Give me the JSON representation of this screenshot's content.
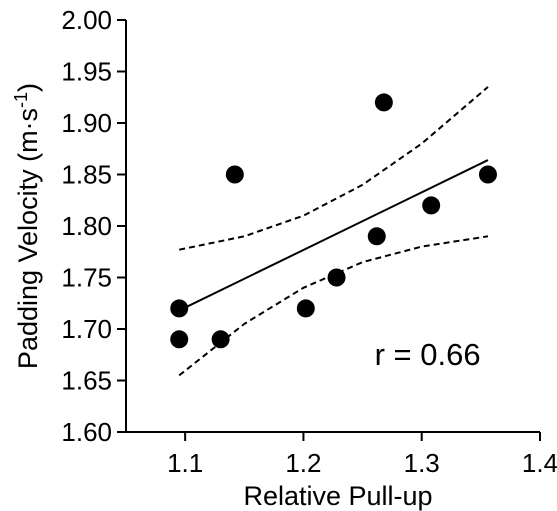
{
  "chart_data": {
    "type": "scatter",
    "title": "",
    "xlabel": "Relative Pull-up",
    "ylabel_main": "Padding Velocity (m·s",
    "ylabel_sup": "-1",
    "ylabel_close": ")",
    "xlim": [
      1.05,
      1.4
    ],
    "ylim": [
      1.6,
      2.0
    ],
    "xticks": [
      1.1,
      1.2,
      1.3,
      1.4
    ],
    "xtick_labels": [
      "1.1",
      "1.2",
      "1.3",
      "1.4"
    ],
    "yticks": [
      1.6,
      1.65,
      1.7,
      1.75,
      1.8,
      1.85,
      1.9,
      1.95,
      2.0
    ],
    "ytick_labels": [
      "1.60",
      "1.65",
      "1.70",
      "1.75",
      "1.80",
      "1.85",
      "1.90",
      "1.95",
      "2.00"
    ],
    "grid": false,
    "points": [
      {
        "x": 1.095,
        "y": 1.72
      },
      {
        "x": 1.095,
        "y": 1.69
      },
      {
        "x": 1.13,
        "y": 1.69
      },
      {
        "x": 1.142,
        "y": 1.85
      },
      {
        "x": 1.202,
        "y": 1.72
      },
      {
        "x": 1.228,
        "y": 1.75
      },
      {
        "x": 1.262,
        "y": 1.79
      },
      {
        "x": 1.268,
        "y": 1.92
      },
      {
        "x": 1.308,
        "y": 1.82
      },
      {
        "x": 1.356,
        "y": 1.85
      }
    ],
    "regression_line": {
      "x": [
        1.095,
        1.356
      ],
      "y": [
        1.718,
        1.864
      ]
    },
    "confidence_upper": {
      "x": [
        1.095,
        1.15,
        1.2,
        1.25,
        1.3,
        1.356
      ],
      "y": [
        1.777,
        1.79,
        1.81,
        1.84,
        1.88,
        1.935
      ]
    },
    "confidence_lower": {
      "x": [
        1.095,
        1.15,
        1.2,
        1.25,
        1.3,
        1.356
      ],
      "y": [
        1.655,
        1.705,
        1.74,
        1.765,
        1.78,
        1.79
      ]
    },
    "annotation": {
      "text": "r = 0.66",
      "x": 1.305,
      "y": 1.665
    },
    "colors": {
      "marker": "#000000",
      "line": "#000000"
    }
  }
}
